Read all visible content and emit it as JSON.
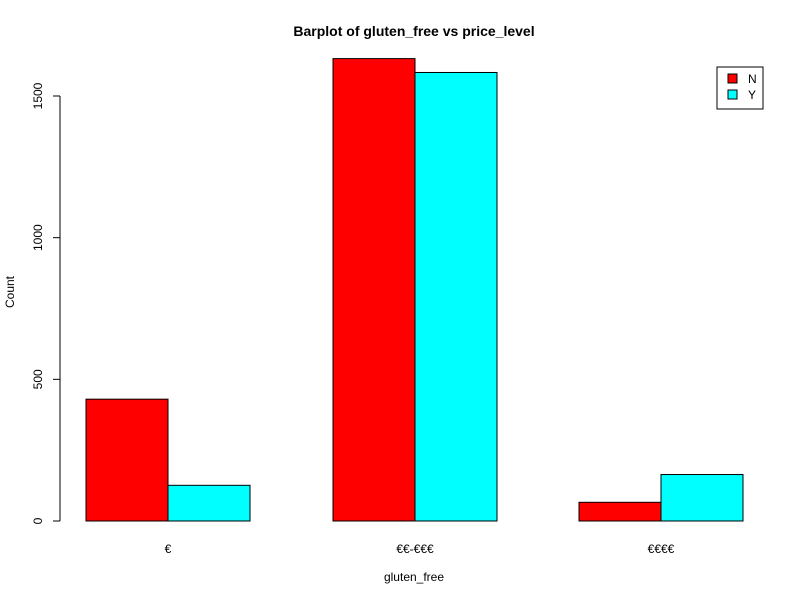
{
  "chart_data": {
    "type": "bar",
    "title": "Barplot of gluten_free vs price_level",
    "xlabel": "gluten_free",
    "ylabel": "Count",
    "categories": [
      "€",
      "€€-€€€",
      "€€€€"
    ],
    "series": [
      {
        "name": "N",
        "color": "#ff0000",
        "values": [
          430,
          1632,
          66
        ]
      },
      {
        "name": "Y",
        "color": "#00ffff",
        "values": [
          126,
          1583,
          164
        ]
      }
    ],
    "ylim": [
      0,
      1700
    ],
    "yticks": [
      0,
      500,
      1000,
      1500
    ],
    "grid": false,
    "legend_position": "top-right"
  }
}
